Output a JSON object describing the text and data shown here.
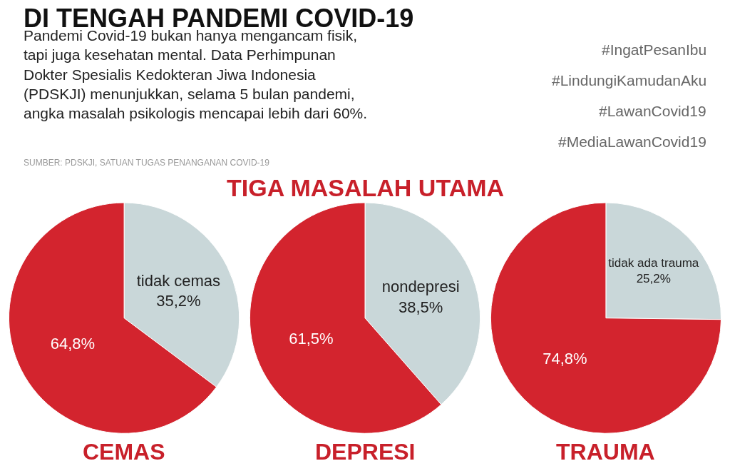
{
  "chart_data": [
    {
      "type": "other",
      "title": "DI TENGAH PANDEMI COVID-19",
      "subtitle": "Pandemi Covid-19 bukan hanya mengancam fisik,\ntapi juga kesehatan mental. Data Perhimpunan\nDokter Spesialis Kedokteran Jiwa Indonesia\n(PDSKJI) menunjukkan, selama 5 bulan pandemi,\nangka masalah psikologis mencapai lebih dari 60%.",
      "annotations": [
        "SUMBER: PDSKJI, SATUAN TUGAS PENANGANAN COVID-19",
        "#IngatPesanIbu",
        "#LindungiKamudanAku",
        "#LawanCovid19",
        "#MediaLawanCovid19",
        "TIGA MASALAH UTAMA"
      ]
    },
    {
      "type": "pie",
      "title": "CEMAS",
      "categories": [
        null,
        "tidak cemas"
      ],
      "values": [
        64.8,
        35.2
      ],
      "value_labels": [
        "64,8%",
        "35,2%"
      ],
      "colors": [
        "#d3242e",
        "#c9d7d9"
      ]
    },
    {
      "type": "pie",
      "title": "DEPRESI",
      "categories": [
        null,
        "nondepresi"
      ],
      "values": [
        61.5,
        38.5
      ],
      "value_labels": [
        "61,5%",
        "38,5%"
      ],
      "colors": [
        "#d3242e",
        "#c9d7d9"
      ]
    },
    {
      "type": "pie",
      "title": "TRAUMA",
      "categories": [
        null,
        "tidak ada trauma"
      ],
      "values": [
        74.8,
        25.2
      ],
      "value_labels": [
        "74,8%",
        "25,2%"
      ],
      "colors": [
        "#d3242e",
        "#c9d7d9"
      ]
    }
  ]
}
